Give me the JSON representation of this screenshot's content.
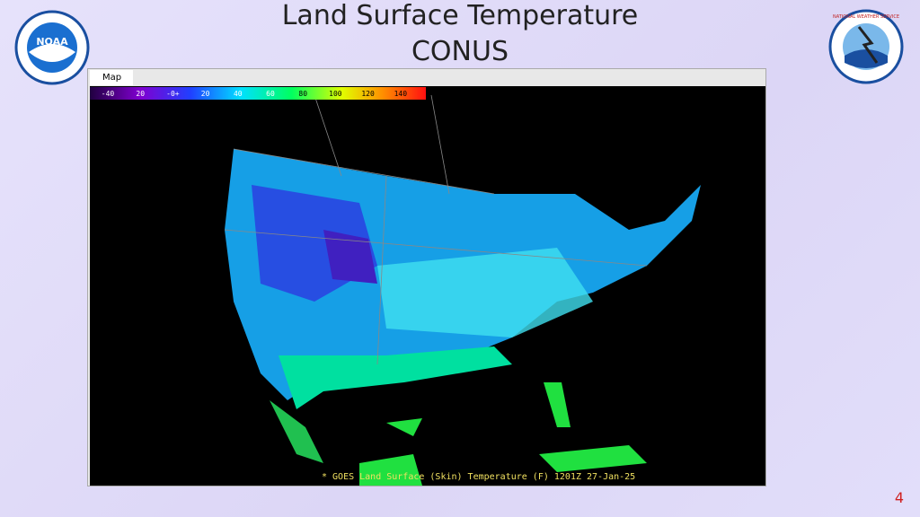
{
  "slide": {
    "title_line1": "Land Surface Temperature",
    "title_line2": "CONUS",
    "page_number": "4"
  },
  "logos": {
    "left": "NOAA",
    "right": "NATIONAL WEATHER SERVICE"
  },
  "window": {
    "tab": "Map",
    "colorbar_labels": [
      "-40",
      "20",
      "-0+",
      "20",
      "40",
      "60",
      "80",
      "100",
      "120",
      "140"
    ],
    "caption": "* GOES Land Surface (Skin) Temperature (F) 1201Z 27-Jan-25"
  }
}
